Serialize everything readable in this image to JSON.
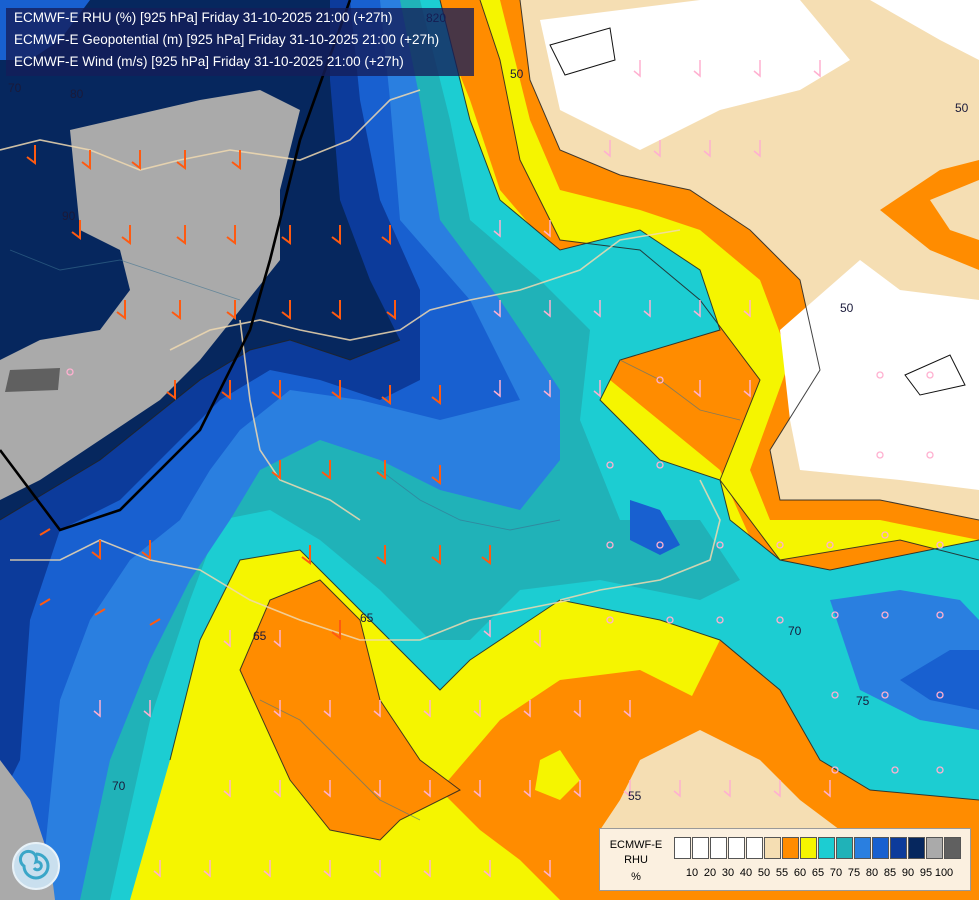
{
  "header": {
    "lines": [
      "ECMWF-E RHU (%) [925 hPa] Friday 31-10-2025 21:00 (+27h)",
      "ECMWF-E Geopotential (m) [925 hPa] Friday 31-10-2025 21:00 (+27h)",
      "ECMWF-E Wind (m/s) [925 hPa] Friday 31-10-2025 21:00 (+27h)"
    ]
  },
  "contour_labels": [
    "70",
    "80",
    "90",
    "820",
    "50",
    "50",
    "50",
    "65",
    "65",
    "70",
    "75",
    "70",
    "55"
  ],
  "legend": {
    "title_lines": [
      "ECMWF-E",
      "RHU",
      "%"
    ],
    "ticks": [
      "10",
      "20",
      "30",
      "40",
      "50",
      "55",
      "60",
      "65",
      "70",
      "75",
      "80",
      "85",
      "90",
      "95",
      "100"
    ],
    "colors": [
      "#ffffff",
      "#ffffff",
      "#ffffff",
      "#ffffff",
      "#ffffff",
      "#f5deb3",
      "#ff8c00",
      "#f5f500",
      "#1ccdd2",
      "#20b2b8",
      "#2a7fe0",
      "#1860d0",
      "#0c3b9b",
      "#06275e",
      "#aaaaaa",
      "#606060"
    ]
  },
  "logo": {
    "name": "logo-swirl"
  }
}
